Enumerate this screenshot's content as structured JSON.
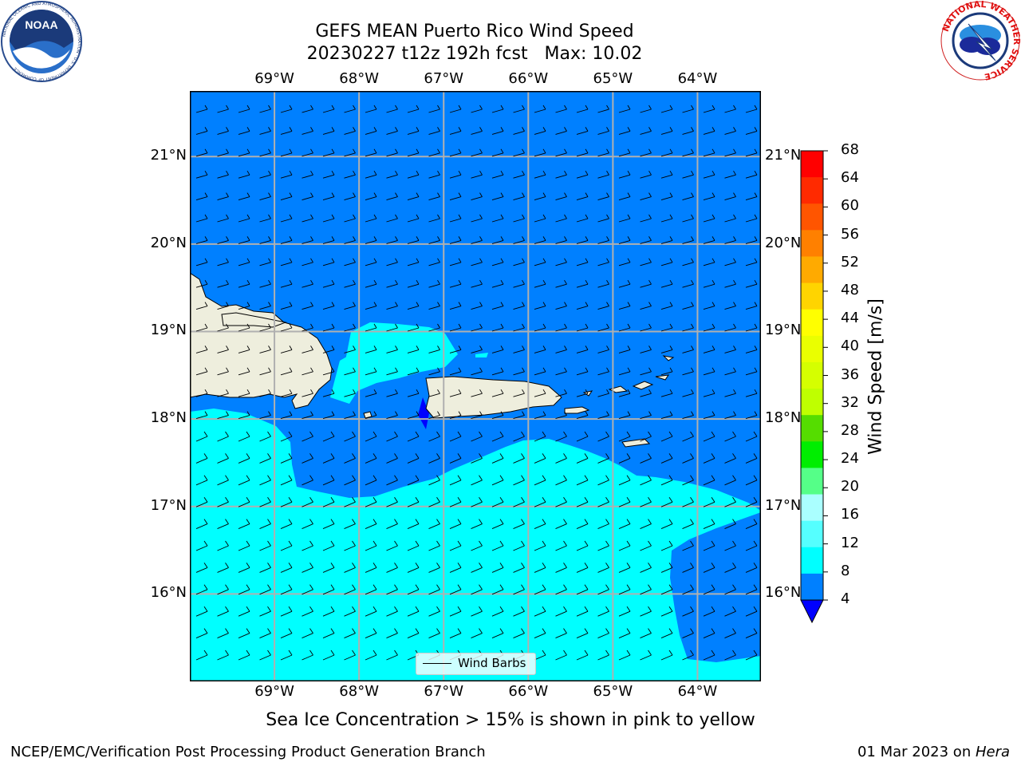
{
  "header": {
    "title_line1": "GEFS MEAN Puerto Rico Wind Speed",
    "title_line2": "20230227 t12z 192h fcst   Max: 10.02"
  },
  "logos": {
    "noaa_text": "NOAA",
    "noaa_ring_text": "NATIONAL OCEANIC AND ATMOSPHERIC ADMINISTRATION · U.S. DEPARTMENT OF COMMERCE",
    "nws_ring_text": "NATIONAL WEATHER SERVICE"
  },
  "map": {
    "lon_labels": [
      "69°W",
      "68°W",
      "67°W",
      "66°W",
      "65°W",
      "64°W"
    ],
    "lat_labels": [
      "21°N",
      "20°N",
      "19°N",
      "18°N",
      "17°N",
      "16°N"
    ],
    "lon_range": [
      -70.0,
      -63.25
    ],
    "lat_range": [
      15.0,
      21.75
    ],
    "gridlines": true,
    "legend_label": "Wind Barbs"
  },
  "colorbar": {
    "title": "Wind Speed [m/s]",
    "levels": [
      "68",
      "64",
      "60",
      "56",
      "52",
      "48",
      "44",
      "40",
      "36",
      "32",
      "28",
      "24",
      "20",
      "16",
      "12",
      "8",
      "4"
    ],
    "colors": [
      "#ff0000",
      "#ff2a00",
      "#ff5500",
      "#ff8000",
      "#ffaa00",
      "#ffd400",
      "#ffff00",
      "#eaff00",
      "#d5ff00",
      "#bfff00",
      "#55dd00",
      "#00ee00",
      "#55ff88",
      "#aaffff",
      "#55ffff",
      "#00ffff",
      "#0080ff"
    ],
    "under_color": "#0000ff"
  },
  "colors": {
    "ocean_low": "#0080ff",
    "ocean_mid": "#00ffff",
    "land": "#eeeedd"
  },
  "subtitle": "Sea Ice Concentration > 15% is shown in pink to yellow",
  "footer": {
    "left": "NCEP/EMC/Verification Post Processing Product Generation Branch",
    "date": "01 Mar 2023 on ",
    "host": "Hera"
  }
}
